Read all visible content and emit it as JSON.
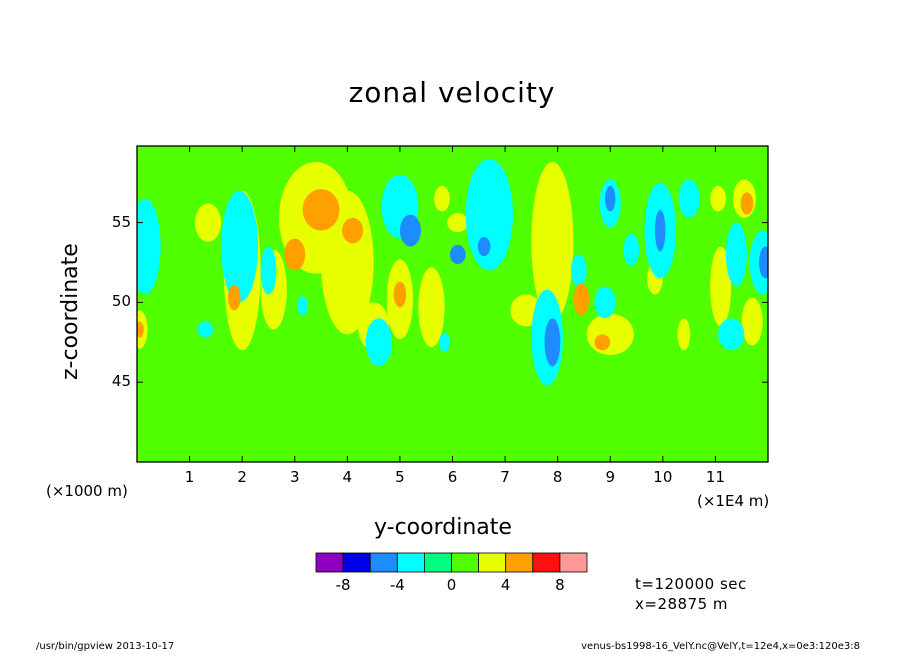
{
  "chart_data": {
    "type": "heatmap",
    "title": "zonal velocity",
    "xlabel": "y-coordinate",
    "ylabel": "z-coordinate",
    "x_unit_left": "(×1000 m)",
    "x_unit_right": "(×1E4 m)",
    "x_ticks": [
      "1",
      "2",
      "3",
      "4",
      "5",
      "6",
      "7",
      "8",
      "9",
      "10",
      "11"
    ],
    "x_tick_values": [
      1,
      2,
      3,
      4,
      5,
      6,
      7,
      8,
      9,
      10,
      11
    ],
    "xlim": [
      0,
      12
    ],
    "y_ticks": [
      "45",
      "50",
      "55"
    ],
    "y_tick_values": [
      45,
      50,
      55
    ],
    "ylim": [
      40,
      59.8
    ],
    "colorbar": {
      "colors": [
        "#8f00c0",
        "#0000e8",
        "#1e8cff",
        "#00ffff",
        "#00ff80",
        "#50ff00",
        "#e8ff00",
        "#ffa000",
        "#ff1010",
        "#ff9999"
      ],
      "tick_labels": [
        "-8",
        "-4",
        "0",
        "4",
        "8"
      ],
      "tick_values": [
        -8,
        -4,
        0,
        4,
        8
      ],
      "range": [
        -10,
        10
      ]
    },
    "background_level": 0,
    "features": [
      {
        "y": 3.5,
        "z": 55.8,
        "rw": 0.35,
        "rh": 1.3,
        "level": 4
      },
      {
        "y": 3.4,
        "z": 55.3,
        "rw": 0.7,
        "rh": 3.5,
        "level": 2
      },
      {
        "y": 4.1,
        "z": 54.5,
        "rw": 0.2,
        "rh": 0.8,
        "level": 4
      },
      {
        "y": 4.0,
        "z": 52.5,
        "rw": 0.5,
        "rh": 4.5,
        "level": 2
      },
      {
        "y": 3.0,
        "z": 53.0,
        "rw": 0.2,
        "rh": 1.0,
        "level": 4
      },
      {
        "y": 2.0,
        "z": 52.0,
        "rw": 0.35,
        "rh": 5.0,
        "level": 2
      },
      {
        "y": 1.85,
        "z": 50.3,
        "rw": 0.12,
        "rh": 0.8,
        "level": 4
      },
      {
        "y": 2.6,
        "z": 50.8,
        "rw": 0.25,
        "rh": 2.5,
        "level": 2
      },
      {
        "y": 1.35,
        "z": 55.0,
        "rw": 0.25,
        "rh": 1.2,
        "level": 2
      },
      {
        "y": 5.0,
        "z": 50.2,
        "rw": 0.25,
        "rh": 2.5,
        "level": 2
      },
      {
        "y": 5.0,
        "z": 50.5,
        "rw": 0.12,
        "rh": 0.8,
        "level": 4
      },
      {
        "y": 5.6,
        "z": 49.7,
        "rw": 0.25,
        "rh": 2.5,
        "level": 2
      },
      {
        "y": 4.5,
        "z": 48.5,
        "rw": 0.3,
        "rh": 1.5,
        "level": 2
      },
      {
        "y": 5.8,
        "z": 56.5,
        "rw": 0.15,
        "rh": 0.8,
        "level": 2
      },
      {
        "y": 7.9,
        "z": 53.8,
        "rw": 0.4,
        "rh": 5.0,
        "level": 2
      },
      {
        "y": 8.45,
        "z": 50.2,
        "rw": 0.15,
        "rh": 1.0,
        "level": 4
      },
      {
        "y": 9.0,
        "z": 48.0,
        "rw": 0.45,
        "rh": 1.3,
        "level": 2
      },
      {
        "y": 8.85,
        "z": 47.5,
        "rw": 0.15,
        "rh": 0.5,
        "level": 4
      },
      {
        "y": 11.05,
        "z": 56.5,
        "rw": 0.15,
        "rh": 0.8,
        "level": 2
      },
      {
        "y": 11.55,
        "z": 56.5,
        "rw": 0.22,
        "rh": 1.2,
        "level": 2
      },
      {
        "y": 11.6,
        "z": 56.2,
        "rw": 0.12,
        "rh": 0.7,
        "level": 4
      },
      {
        "y": 11.1,
        "z": 51.0,
        "rw": 0.2,
        "rh": 2.5,
        "level": 2
      },
      {
        "y": 11.7,
        "z": 48.8,
        "rw": 0.2,
        "rh": 1.5,
        "level": 2
      },
      {
        "y": 0.05,
        "z": 48.3,
        "rw": 0.15,
        "rh": 1.2,
        "level": 2
      },
      {
        "y": 0.05,
        "z": 48.3,
        "rw": 0.08,
        "rh": 0.5,
        "level": 4
      },
      {
        "y": 6.1,
        "z": 55.0,
        "rw": 0.2,
        "rh": 0.6,
        "level": 2
      },
      {
        "y": 7.4,
        "z": 49.5,
        "rw": 0.3,
        "rh": 1.0,
        "level": 2
      },
      {
        "y": 9.85,
        "z": 51.5,
        "rw": 0.15,
        "rh": 1.0,
        "level": 2
      },
      {
        "y": 10.4,
        "z": 48.0,
        "rw": 0.12,
        "rh": 1.0,
        "level": 2
      },
      {
        "y": 0.15,
        "z": 53.5,
        "rw": 0.3,
        "rh": 3.0,
        "level": -2
      },
      {
        "y": 1.95,
        "z": 53.5,
        "rw": 0.35,
        "rh": 3.5,
        "level": -2
      },
      {
        "y": 2.5,
        "z": 52.0,
        "rw": 0.15,
        "rh": 1.5,
        "level": -2
      },
      {
        "y": 5.0,
        "z": 56.0,
        "rw": 0.35,
        "rh": 2.0,
        "level": -2
      },
      {
        "y": 4.6,
        "z": 47.5,
        "rw": 0.25,
        "rh": 1.5,
        "level": -2
      },
      {
        "y": 5.2,
        "z": 54.5,
        "rw": 0.2,
        "rh": 1.0,
        "level": -4
      },
      {
        "y": 6.7,
        "z": 55.5,
        "rw": 0.45,
        "rh": 3.5,
        "level": -2
      },
      {
        "y": 6.6,
        "z": 53.5,
        "rw": 0.12,
        "rh": 0.6,
        "level": -4
      },
      {
        "y": 6.1,
        "z": 53.0,
        "rw": 0.15,
        "rh": 0.6,
        "level": -4
      },
      {
        "y": 7.8,
        "z": 47.8,
        "rw": 0.3,
        "rh": 3.0,
        "level": -2
      },
      {
        "y": 7.9,
        "z": 47.5,
        "rw": 0.15,
        "rh": 1.5,
        "level": -4
      },
      {
        "y": 8.4,
        "z": 52.0,
        "rw": 0.15,
        "rh": 1.0,
        "level": -2
      },
      {
        "y": 8.9,
        "z": 50.0,
        "rw": 0.2,
        "rh": 1.0,
        "level": -2
      },
      {
        "y": 9.0,
        "z": 56.2,
        "rw": 0.2,
        "rh": 1.5,
        "level": -2
      },
      {
        "y": 9.0,
        "z": 56.5,
        "rw": 0.1,
        "rh": 0.8,
        "level": -4
      },
      {
        "y": 9.4,
        "z": 53.3,
        "rw": 0.15,
        "rh": 1.0,
        "level": -2
      },
      {
        "y": 9.95,
        "z": 54.5,
        "rw": 0.3,
        "rh": 3.0,
        "level": -2
      },
      {
        "y": 9.95,
        "z": 54.5,
        "rw": 0.1,
        "rh": 1.3,
        "level": -4
      },
      {
        "y": 10.5,
        "z": 56.5,
        "rw": 0.2,
        "rh": 1.2,
        "level": -2
      },
      {
        "y": 11.4,
        "z": 53.0,
        "rw": 0.2,
        "rh": 2.0,
        "level": -2
      },
      {
        "y": 11.9,
        "z": 52.5,
        "rw": 0.25,
        "rh": 2.0,
        "level": -2
      },
      {
        "y": 11.95,
        "z": 52.5,
        "rw": 0.12,
        "rh": 1.0,
        "level": -4
      },
      {
        "y": 11.3,
        "z": 48.0,
        "rw": 0.25,
        "rh": 1.0,
        "level": -2
      },
      {
        "y": 1.3,
        "z": 48.3,
        "rw": 0.15,
        "rh": 0.5,
        "level": -2
      },
      {
        "y": 3.15,
        "z": 49.8,
        "rw": 0.1,
        "rh": 0.6,
        "level": -2
      },
      {
        "y": 5.85,
        "z": 47.5,
        "rw": 0.1,
        "rh": 0.6,
        "level": -2
      }
    ]
  },
  "info": {
    "time": "t=120000 sec",
    "position": "x=28875 m"
  },
  "footer": {
    "left": "/usr/bin/gpview   2013-10-17",
    "right": "venus-bs1998-16_VelY.nc@VelY,t=12e4,x=0e3:120e3:8"
  }
}
